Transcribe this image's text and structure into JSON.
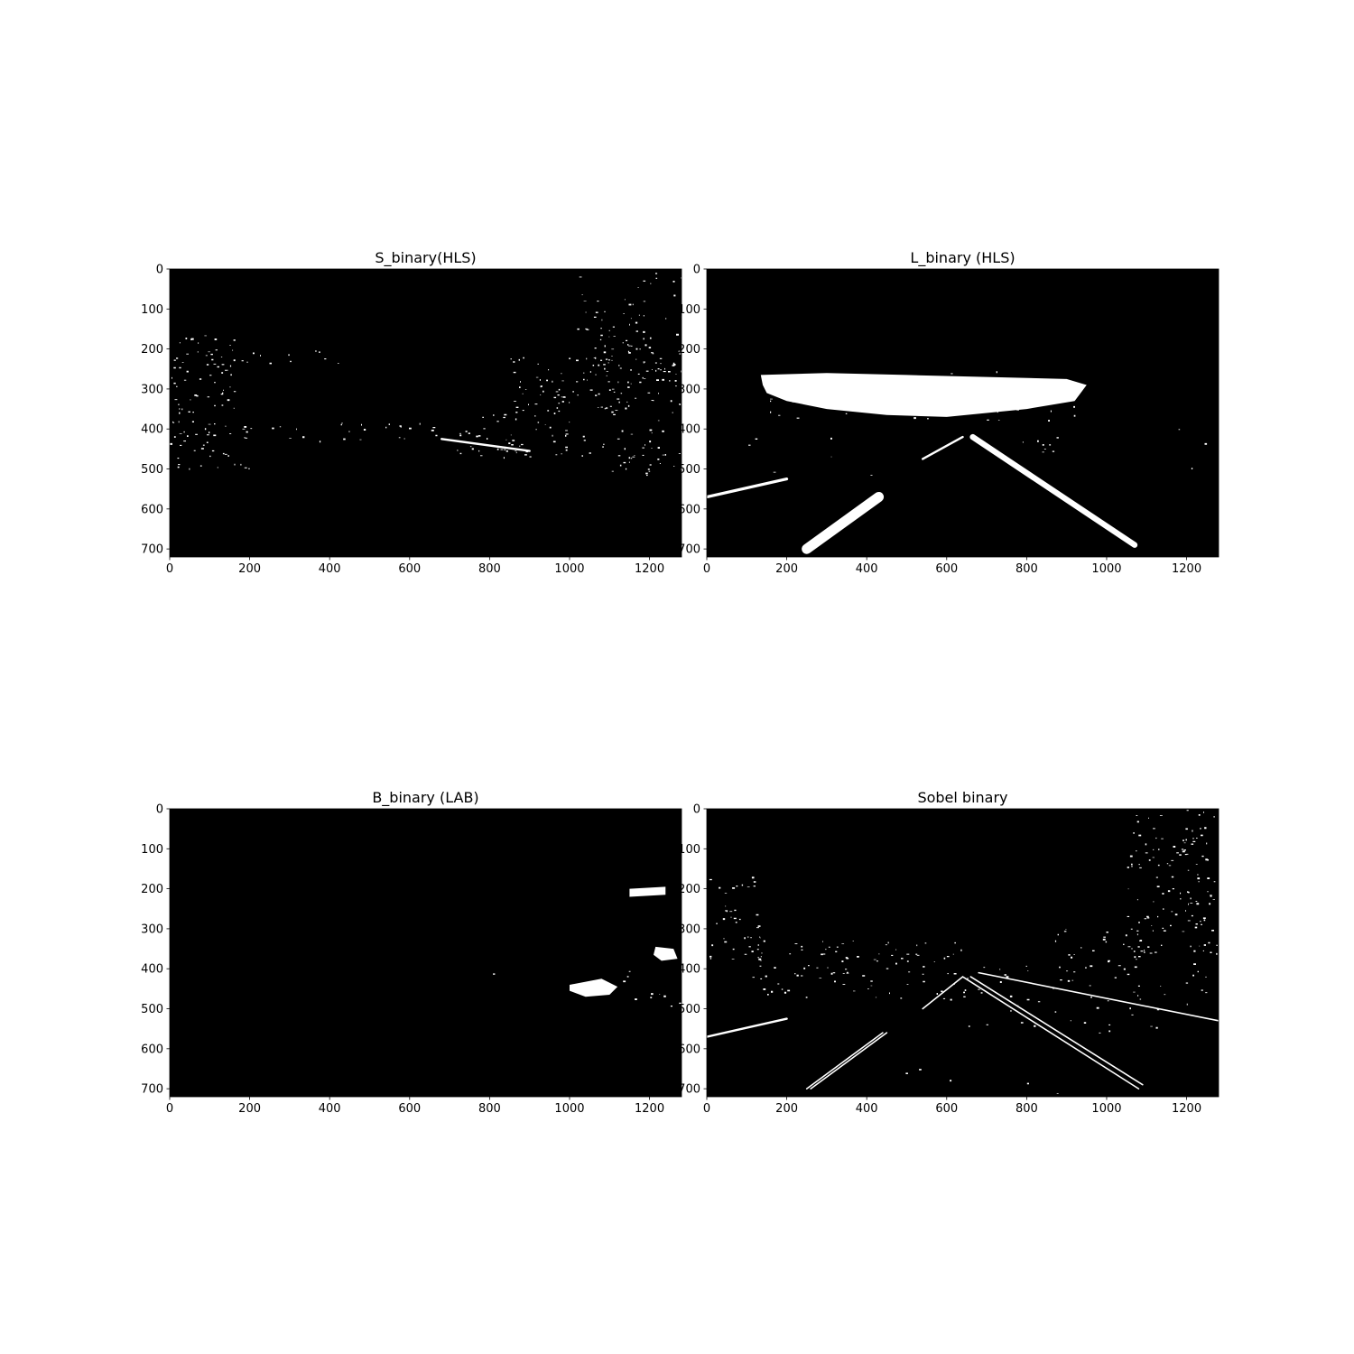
{
  "figure": {
    "background": "#ffffff",
    "image_background": "#000000",
    "pixel_on_color": "#ffffff"
  },
  "chart_data": [
    {
      "type": "heatmap",
      "title": "S_binary(HLS)",
      "xlabel": "",
      "ylabel": "",
      "xlim": [
        0,
        1280
      ],
      "ylim": [
        720,
        0
      ],
      "xticks": [
        0,
        200,
        400,
        600,
        800,
        1000,
        1200
      ],
      "yticks": [
        0,
        100,
        200,
        300,
        400,
        500,
        600,
        700
      ],
      "grid": false,
      "features": [
        {
          "kind": "speckle",
          "x": [
            0,
            160
          ],
          "y": [
            160,
            360
          ],
          "density": 0.55
        },
        {
          "kind": "speckle",
          "x": [
            0,
            200
          ],
          "y": [
            380,
            500
          ],
          "density": 0.55
        },
        {
          "kind": "speckle",
          "x": [
            150,
            420
          ],
          "y": [
            195,
            235
          ],
          "density": 0.35
        },
        {
          "kind": "speckle",
          "x": [
            200,
            700
          ],
          "y": [
            380,
            430
          ],
          "density": 0.3
        },
        {
          "kind": "speckle",
          "x": [
            1000,
            1280
          ],
          "y": [
            0,
            160
          ],
          "density": 0.25
        },
        {
          "kind": "speckle",
          "x": [
            1050,
            1280
          ],
          "y": [
            160,
            380
          ],
          "density": 0.6
        },
        {
          "kind": "speckle",
          "x": [
            850,
            1100
          ],
          "y": [
            220,
            360
          ],
          "density": 0.45
        },
        {
          "kind": "speckle",
          "x": [
            780,
            1000
          ],
          "y": [
            330,
            400
          ],
          "density": 0.35
        },
        {
          "kind": "speckle",
          "x": [
            700,
            1280
          ],
          "y": [
            400,
            470
          ],
          "density": 0.45
        },
        {
          "kind": "speckle",
          "x": [
            1100,
            1280
          ],
          "y": [
            460,
            520
          ],
          "density": 0.55
        },
        {
          "kind": "line",
          "points": [
            [
              680,
              425
            ],
            [
              900,
              455
            ]
          ],
          "width": 3
        }
      ]
    },
    {
      "type": "heatmap",
      "title": "L_binary (HLS)",
      "xlabel": "",
      "ylabel": "",
      "xlim": [
        0,
        1280
      ],
      "ylim": [
        720,
        0
      ],
      "xticks": [
        0,
        200,
        400,
        600,
        800,
        1000,
        1200
      ],
      "yticks": [
        0,
        100,
        200,
        300,
        400,
        500,
        600,
        700
      ],
      "grid": false,
      "features": [
        {
          "kind": "blob",
          "polygon": [
            [
              135,
              265
            ],
            [
              300,
              260
            ],
            [
              500,
              265
            ],
            [
              700,
              270
            ],
            [
              900,
              275
            ],
            [
              950,
              290
            ],
            [
              920,
              330
            ],
            [
              800,
              350
            ],
            [
              700,
              360
            ],
            [
              600,
              370
            ],
            [
              450,
              365
            ],
            [
              300,
              350
            ],
            [
              200,
              330
            ],
            [
              150,
              310
            ],
            [
              140,
              290
            ]
          ]
        },
        {
          "kind": "speckle",
          "x": [
            130,
            920
          ],
          "y": [
            255,
            380
          ],
          "density": 0.18
        },
        {
          "kind": "line",
          "points": [
            [
              250,
              700
            ],
            [
              430,
              570
            ]
          ],
          "width": 14
        },
        {
          "kind": "line",
          "points": [
            [
              0,
              570
            ],
            [
              200,
              525
            ]
          ],
          "width": 4
        },
        {
          "kind": "line",
          "points": [
            [
              665,
              420
            ],
            [
              1070,
              690
            ]
          ],
          "width": 8
        },
        {
          "kind": "line",
          "points": [
            [
              540,
              475
            ],
            [
              640,
              420
            ]
          ],
          "width": 3
        },
        {
          "kind": "speckle",
          "x": [
            640,
            900
          ],
          "y": [
            420,
            460
          ],
          "density": 0.25
        },
        {
          "kind": "speckle",
          "x": [
            0,
            420
          ],
          "y": [
            420,
            520
          ],
          "density": 0.04
        },
        {
          "kind": "speckle",
          "x": [
            1100,
            1280
          ],
          "y": [
            380,
            520
          ],
          "density": 0.03
        }
      ]
    },
    {
      "type": "heatmap",
      "title": "B_binary (LAB)",
      "xlabel": "",
      "ylabel": "",
      "xlim": [
        0,
        1280
      ],
      "ylim": [
        720,
        0
      ],
      "xticks": [
        0,
        200,
        400,
        600,
        800,
        1000,
        1200
      ],
      "yticks": [
        0,
        100,
        200,
        300,
        400,
        500,
        600,
        700
      ],
      "grid": false,
      "features": [
        {
          "kind": "blob",
          "polygon": [
            [
              1150,
              200
            ],
            [
              1240,
              195
            ],
            [
              1240,
              215
            ],
            [
              1150,
              220
            ]
          ]
        },
        {
          "kind": "blob",
          "polygon": [
            [
              1215,
              345
            ],
            [
              1260,
              350
            ],
            [
              1270,
              375
            ],
            [
              1230,
              380
            ],
            [
              1210,
              365
            ]
          ]
        },
        {
          "kind": "blob",
          "polygon": [
            [
              1000,
              440
            ],
            [
              1080,
              425
            ],
            [
              1120,
              445
            ],
            [
              1100,
              465
            ],
            [
              1040,
              470
            ],
            [
              1000,
              455
            ]
          ]
        },
        {
          "kind": "speckle",
          "x": [
            1150,
            1280
          ],
          "y": [
            460,
            500
          ],
          "density": 0.4
        },
        {
          "kind": "speckle",
          "x": [
            1070,
            1150
          ],
          "y": [
            395,
            430
          ],
          "density": 0.3
        },
        {
          "kind": "speckle",
          "x": [
            780,
            900
          ],
          "y": [
            395,
            430
          ],
          "density": 0.05
        }
      ]
    },
    {
      "type": "heatmap",
      "title": "Sobel binary",
      "xlabel": "",
      "ylabel": "",
      "xlim": [
        0,
        1280
      ],
      "ylim": [
        720,
        0
      ],
      "xticks": [
        0,
        200,
        400,
        600,
        800,
        1000,
        1200
      ],
      "yticks": [
        0,
        100,
        200,
        300,
        400,
        500,
        600,
        700
      ],
      "grid": false,
      "features": [
        {
          "kind": "speckle",
          "x": [
            0,
            150
          ],
          "y": [
            170,
            380
          ],
          "density": 0.4
        },
        {
          "kind": "speckle",
          "x": [
            100,
            650
          ],
          "y": [
            330,
            480
          ],
          "density": 0.35
        },
        {
          "kind": "speckle",
          "x": [
            1050,
            1280
          ],
          "y": [
            0,
            380
          ],
          "density": 0.45
        },
        {
          "kind": "speckle",
          "x": [
            850,
            1100
          ],
          "y": [
            300,
            400
          ],
          "density": 0.35
        },
        {
          "kind": "speckle",
          "x": [
            650,
            1280
          ],
          "y": [
            380,
            560
          ],
          "density": 0.15
        },
        {
          "kind": "line",
          "points": [
            [
              0,
              570
            ],
            [
              200,
              525
            ]
          ],
          "width": 3
        },
        {
          "kind": "line",
          "points": [
            [
              250,
              700
            ],
            [
              440,
              560
            ]
          ],
          "width": 2
        },
        {
          "kind": "line",
          "points": [
            [
              260,
              700
            ],
            [
              450,
              560
            ]
          ],
          "width": 2
        },
        {
          "kind": "line",
          "points": [
            [
              640,
              420
            ],
            [
              1080,
              700
            ]
          ],
          "width": 2
        },
        {
          "kind": "line",
          "points": [
            [
              660,
              420
            ],
            [
              1090,
              690
            ]
          ],
          "width": 2
        },
        {
          "kind": "line",
          "points": [
            [
              680,
              410
            ],
            [
              1280,
              530
            ]
          ],
          "width": 2
        },
        {
          "kind": "line",
          "points": [
            [
              540,
              500
            ],
            [
              640,
              420
            ]
          ],
          "width": 2
        },
        {
          "kind": "speckle",
          "x": [
            400,
            900
          ],
          "y": [
            560,
            720
          ],
          "density": 0.02
        }
      ]
    }
  ]
}
